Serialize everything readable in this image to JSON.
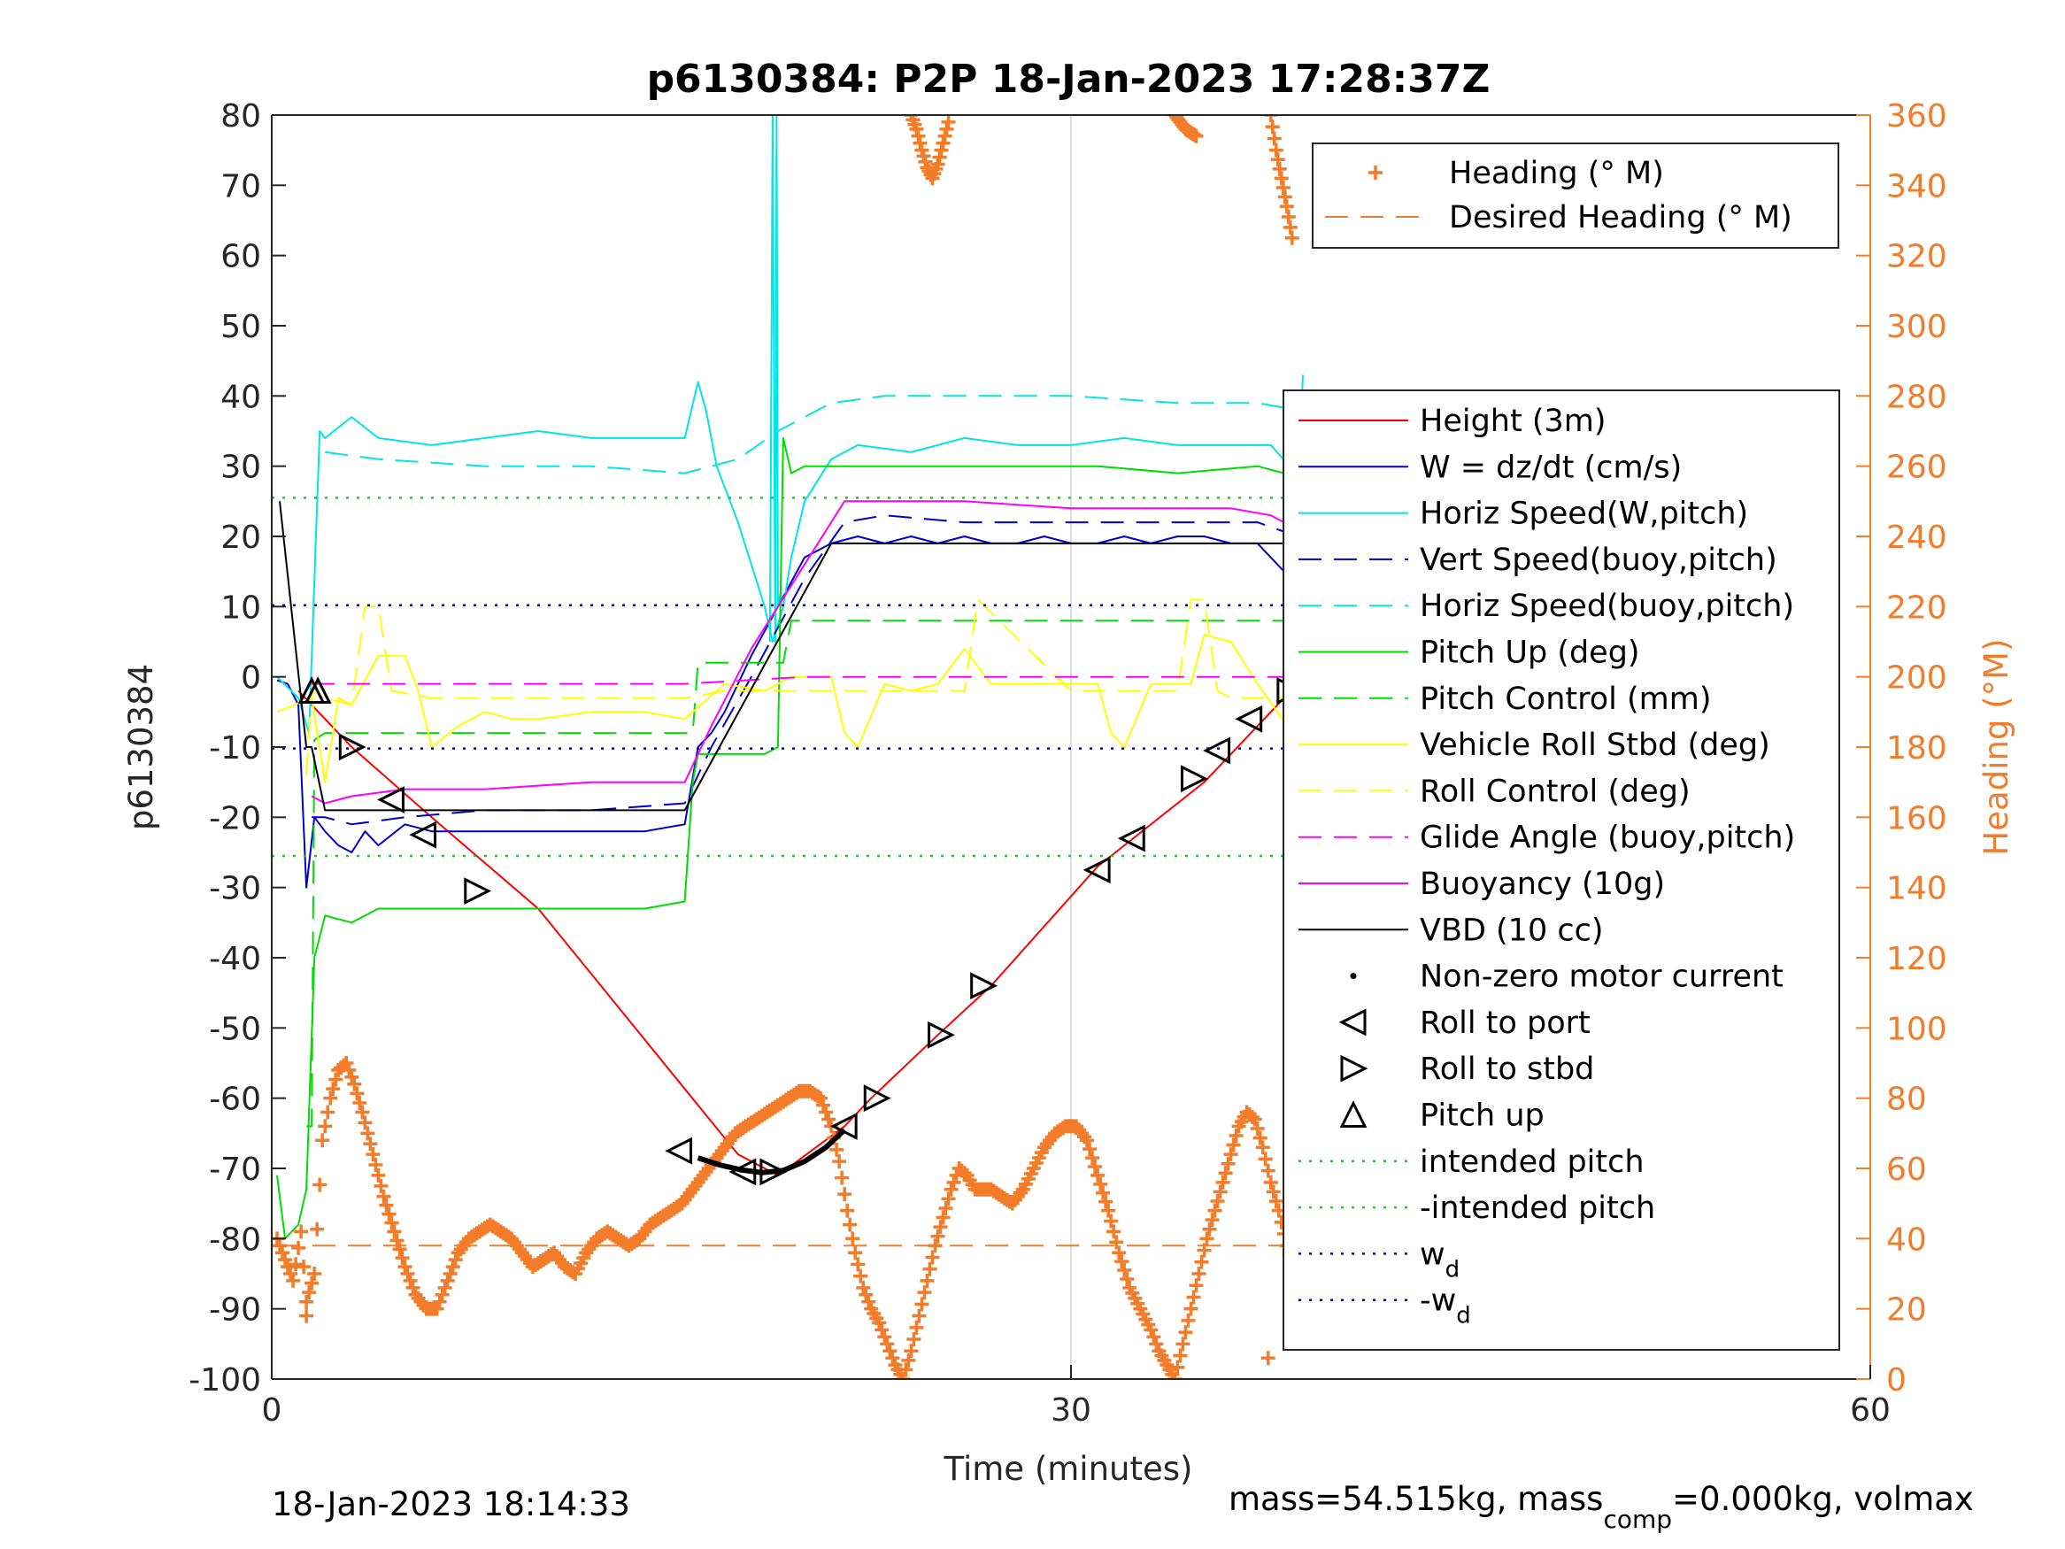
{
  "chart_data": {
    "type": "line",
    "title": "p6130384: P2P 18-Jan-2023 17:28:37Z",
    "xlabel": "Time (minutes)",
    "ylabel": "p6130384",
    "y2label": "Heading (°M)",
    "xlim": [
      0,
      60
    ],
    "ylim": [
      -100,
      80
    ],
    "y2lim": [
      0,
      360
    ],
    "xticks": [
      0,
      30,
      60
    ],
    "yticks": [
      80,
      70,
      60,
      50,
      40,
      30,
      20,
      10,
      0,
      -10,
      -20,
      -30,
      -40,
      -50,
      -60,
      -70,
      -80,
      -90,
      -100
    ],
    "y2ticks": [
      360,
      340,
      320,
      300,
      280,
      260,
      240,
      220,
      200,
      180,
      160,
      140,
      120,
      100,
      80,
      60,
      40,
      20,
      0
    ],
    "grid": "x-only",
    "footer_left": "18-Jan-2023 18:14:33",
    "footer_right": {
      "a": "mass=54.515kg, mass",
      "sub": "comp",
      "b": "=0.000kg, volmax"
    },
    "legend_heading": [
      {
        "name": "Heading (° M)",
        "color": "#f27c2a",
        "style": "plus"
      },
      {
        "name": "Desired Heading (° M)",
        "color": "#f27c2a",
        "style": "dashed"
      }
    ],
    "legend_main": [
      {
        "name": "Height (3m)",
        "color": "#ff0000",
        "style": "solid"
      },
      {
        "name": "W = dz/dt (cm/s)",
        "color": "#0000cc",
        "style": "solid"
      },
      {
        "name": "Horiz Speed(W,pitch)",
        "color": "#00e5e5",
        "style": "solid"
      },
      {
        "name": "Vert Speed(buoy,pitch)",
        "color": "#0000cc",
        "style": "dashed"
      },
      {
        "name": "Horiz Speed(buoy,pitch)",
        "color": "#00e5e5",
        "style": "dashed"
      },
      {
        "name": "Pitch Up (deg)",
        "color": "#00dd00",
        "style": "solid"
      },
      {
        "name": "Pitch Control (mm)",
        "color": "#00dd00",
        "style": "dashed"
      },
      {
        "name": "Vehicle Roll Stbd (deg)",
        "color": "#ffff00",
        "style": "solid"
      },
      {
        "name": "Roll Control (deg)",
        "color": "#ffff00",
        "style": "dashed"
      },
      {
        "name": "Glide Angle (buoy,pitch)",
        "color": "#ff00ff",
        "style": "dashed"
      },
      {
        "name": "Buoyancy (10g)",
        "color": "#ff00ff",
        "style": "solid"
      },
      {
        "name": "VBD (10 cc)",
        "color": "#000000",
        "style": "solid"
      },
      {
        "name": "Non-zero motor current",
        "color": "#000000",
        "style": "dot"
      },
      {
        "name": "Roll to port",
        "color": "#000000",
        "style": "tri-left"
      },
      {
        "name": "Roll to stbd",
        "color": "#000000",
        "style": "tri-right"
      },
      {
        "name": "Pitch up",
        "color": "#000000",
        "style": "tri-up"
      },
      {
        "name": "intended pitch",
        "color": "#00dd00",
        "style": "dotted"
      },
      {
        "name": "-intended pitch",
        "color": "#00dd00",
        "style": "dotted"
      },
      {
        "name": "w",
        "sub": "d",
        "color": "#0000cc",
        "style": "dotted"
      },
      {
        "name": "-w",
        "sub": "d",
        "color": "#0000cc",
        "style": "dotted"
      }
    ],
    "series": [
      {
        "name": "Height (3m)",
        "axis": "left",
        "color": "#ff0000",
        "style": "solid",
        "x": [
          1.0,
          3.0,
          6.0,
          10.0,
          13.0,
          16.0,
          17.5,
          19.0,
          21.5,
          22.5,
          25.0,
          27.0,
          31.0,
          35.0,
          38.5
        ],
        "y": [
          -2,
          -10,
          -20,
          -33,
          -47,
          -61,
          -68,
          -71,
          -64,
          -60,
          -51,
          -44,
          -27,
          -15,
          -1
        ]
      },
      {
        "name": "W = dz/dt (cm/s)",
        "axis": "left",
        "color": "#0000cc",
        "style": "solid",
        "x": [
          0.2,
          0.6,
          1.0,
          1.3,
          1.6,
          2.0,
          2.5,
          3.0,
          3.5,
          4.0,
          5.0,
          6.0,
          8.0,
          10.0,
          12.0,
          14.0,
          15.5,
          16.0,
          16.5,
          17.0,
          18.0,
          19.0,
          20.0,
          21.0,
          22.0,
          23.0,
          24.0,
          25.0,
          26.0,
          27.0,
          28.0,
          29.0,
          30.0,
          31.0,
          32.0,
          33.0,
          34.0,
          35.0,
          36.0,
          37.0,
          38.0,
          38.5
        ],
        "y": [
          -0.5,
          -1,
          -4,
          -30,
          -20,
          -22,
          -24,
          -25,
          -22,
          -24,
          -21,
          -22,
          -22,
          -22,
          -22,
          -22,
          -21,
          -10,
          -8,
          -5,
          3,
          10,
          17,
          19,
          20,
          19,
          20,
          19,
          20,
          19,
          19,
          20,
          19,
          19,
          20,
          19,
          20,
          20,
          19,
          19,
          15,
          9
        ]
      },
      {
        "name": "Horiz Speed(W,pitch)",
        "axis": "left",
        "color": "#00e5e5",
        "style": "solid",
        "x": [
          0.2,
          1.0,
          1.4,
          1.8,
          2.0,
          3.0,
          4.0,
          6.0,
          8.0,
          10.0,
          12.0,
          14.0,
          15.5,
          16.0,
          16.3,
          16.7,
          17.5,
          18.5,
          18.8,
          19.2,
          19.5,
          20.0,
          21.0,
          22.0,
          24.0,
          26.0,
          28.0,
          30.0,
          32.0,
          34.0,
          36.0,
          37.5,
          38.2,
          38.5,
          38.7
        ],
        "y": [
          0,
          -3,
          -8,
          35,
          34,
          37,
          34,
          33,
          34,
          35,
          34,
          34,
          34,
          42,
          38,
          30,
          22,
          10,
          5,
          10,
          17,
          25,
          31,
          33,
          32,
          34,
          33,
          33,
          34,
          33,
          33,
          33,
          30,
          20,
          43
        ]
      },
      {
        "name": "Horiz Speed spike",
        "axis": "left",
        "color": "#00e5e5",
        "style": "solid",
        "x": [
          18.7,
          18.8,
          18.9,
          18.95,
          19.0,
          19.1
        ],
        "y": [
          5,
          80,
          5,
          80,
          10,
          12
        ]
      },
      {
        "name": "Vert Speed(buoy,pitch)",
        "axis": "left",
        "color": "#0000cc",
        "style": "dashed",
        "x": [
          1.5,
          2.0,
          3.0,
          5.0,
          8.0,
          12.0,
          15.5,
          16.5,
          18.0,
          20.0,
          21.5,
          23.0,
          26.0,
          30.0,
          34.0,
          37.0,
          38.5
        ],
        "y": [
          -20,
          -20,
          -21,
          -20,
          -19,
          -19,
          -18,
          -10,
          0,
          14,
          22,
          23,
          22,
          22,
          22,
          22,
          20
        ]
      },
      {
        "name": "Horiz Speed(buoy,pitch)",
        "axis": "left",
        "color": "#00e5e5",
        "style": "dashed",
        "x": [
          2.0,
          4.0,
          8.0,
          12.0,
          15.5,
          17.5,
          19.0,
          21.0,
          23.0,
          26.0,
          30.0,
          34.0,
          37.0,
          38.5
        ],
        "y": [
          32,
          31,
          30,
          30,
          29,
          31,
          35,
          39,
          40,
          40,
          40,
          39,
          39,
          38
        ]
      },
      {
        "name": "Pitch Up (deg)",
        "axis": "left",
        "color": "#00dd00",
        "style": "solid",
        "x": [
          0.2,
          0.5,
          1.0,
          1.3,
          1.6,
          2.0,
          3.0,
          4.0,
          6.0,
          8.0,
          10.0,
          12.0,
          14.0,
          15.5,
          15.8,
          16.0,
          17.0,
          18.5,
          19.0,
          19.2,
          19.5,
          20.0,
          22.0,
          25.0,
          28.0,
          31.0,
          34.0,
          37.0,
          38.0,
          38.5
        ],
        "y": [
          -71,
          -80,
          -78,
          -73,
          -40,
          -34,
          -35,
          -33,
          -33,
          -33,
          -33,
          -33,
          -33,
          -32,
          -15,
          -11,
          -11,
          -11,
          -10,
          34,
          29,
          30,
          30,
          30,
          30,
          30,
          29,
          30,
          29,
          25
        ]
      },
      {
        "name": "Pitch Control (mm)",
        "axis": "left",
        "color": "#00dd00",
        "style": "dashed",
        "x": [
          1.3,
          1.5,
          1.6,
          2.0,
          5.0,
          10.0,
          15.8,
          16.0,
          19.2,
          19.5,
          25.0,
          30.0,
          35.0,
          38.5
        ],
        "y": [
          -64,
          -64,
          -9,
          -8,
          -8,
          -8,
          -8,
          2,
          2,
          8,
          8,
          8,
          8,
          8
        ]
      },
      {
        "name": "Vehicle Roll Stbd (deg)",
        "axis": "left",
        "color": "#ffff00",
        "style": "solid",
        "x": [
          0.2,
          1.5,
          2.0,
          2.5,
          3.0,
          4.0,
          5.0,
          5.5,
          6.0,
          7.0,
          8.0,
          9.0,
          10.0,
          12.0,
          14.0,
          15.5,
          17.0,
          18.5,
          19.5,
          21.0,
          21.5,
          22.0,
          23.0,
          24.0,
          25.0,
          26.0,
          27.0,
          29.0,
          31.0,
          31.5,
          32.0,
          33.0,
          34.5,
          35.0,
          36.0,
          37.0,
          38.5
        ],
        "y": [
          -5,
          -3,
          -15,
          -3,
          -4,
          3,
          3,
          -2,
          -10,
          -7,
          -5,
          -6,
          -6,
          -5,
          -5,
          -6,
          -1,
          -2,
          0,
          0,
          -8,
          -10,
          -1,
          -2,
          -1,
          4,
          -1,
          -1,
          -1,
          -8,
          -10,
          -1,
          -1,
          6,
          5,
          -1,
          -9
        ]
      },
      {
        "name": "Roll Control (deg)",
        "axis": "left",
        "color": "#ffff00",
        "style": "dashed",
        "x": [
          1.3,
          1.5,
          2.0,
          3.0,
          3.5,
          4.0,
          4.5,
          6.0,
          10.0,
          15.5,
          17.0,
          20.0,
          22.0,
          24.0,
          26.0,
          26.5,
          30.0,
          34.0,
          34.5,
          35.0,
          35.5,
          36.0,
          38.5
        ],
        "y": [
          -14,
          -2,
          -3,
          -4,
          10,
          10,
          -2,
          -3,
          -3,
          -3,
          -2,
          -2,
          -2,
          -2,
          -2,
          11,
          -2,
          -2,
          11,
          11,
          -2,
          -3,
          -3
        ]
      },
      {
        "name": "Glide Angle (buoy,pitch)",
        "axis": "left",
        "color": "#ff00ff",
        "style": "dashed",
        "x": [
          1.5,
          2.0,
          8.0,
          15.5,
          20.0,
          25.0,
          30.0,
          35.0,
          38.5
        ],
        "y": [
          -1,
          -1,
          -1,
          -1,
          0,
          0,
          0,
          0,
          0
        ]
      },
      {
        "name": "Buoyancy (10g)",
        "axis": "left",
        "color": "#ff00ff",
        "style": "solid",
        "x": [
          1.5,
          2.0,
          3.0,
          5.0,
          8.0,
          12.0,
          15.5,
          16.5,
          18.0,
          20.0,
          21.5,
          23.0,
          26.0,
          30.0,
          34.0,
          36.0,
          37.5,
          38.5
        ],
        "y": [
          -17,
          -18,
          -17,
          -16,
          -16,
          -15,
          -15,
          -7,
          4,
          16,
          25,
          25,
          25,
          24,
          24,
          24,
          23,
          21
        ]
      },
      {
        "name": "VBD (10 cc)",
        "axis": "left",
        "color": "#000000",
        "style": "solid",
        "x": [
          0.3,
          1.3,
          1.5,
          2.0,
          8.0,
          15.5,
          21.0,
          21.5,
          38.5
        ],
        "y": [
          25,
          -10,
          -10,
          -19,
          -19,
          -19,
          19,
          19,
          19
        ]
      },
      {
        "name": "Desired Heading (° M)",
        "axis": "right",
        "color": "#f27c2a",
        "style": "dashed",
        "x": [
          0.2,
          38.5
        ],
        "y": [
          38,
          38
        ]
      },
      {
        "name": "intended pitch",
        "axis": "left",
        "color": "#00dd00",
        "style": "dotted",
        "x": [
          0,
          38.5
        ],
        "y": [
          25.5,
          25.5
        ]
      },
      {
        "name": "-intended pitch",
        "axis": "left",
        "color": "#00dd00",
        "style": "dotted",
        "x": [
          0,
          38.5
        ],
        "y": [
          -25.5,
          -25.5
        ]
      },
      {
        "name": "w_d",
        "axis": "left",
        "color": "#0000cc",
        "style": "dotted",
        "x": [
          0,
          38.5
        ],
        "y": [
          10.2,
          10.2
        ]
      },
      {
        "name": "-w_d",
        "axis": "left",
        "color": "#0000cc",
        "style": "dotted",
        "x": [
          0,
          38.5
        ],
        "y": [
          -10.2,
          -10.2
        ]
      }
    ],
    "heading": {
      "name": "Heading (° M)",
      "axis": "right",
      "color": "#f27c2a",
      "x": [
        0.2,
        0.5,
        0.8,
        1.1,
        1.3,
        1.6,
        1.9,
        2.2,
        2.5,
        2.8,
        3.1,
        3.4,
        3.8,
        4.2,
        4.6,
        5.0,
        5.4,
        5.8,
        6.2,
        6.6,
        7.0,
        7.4,
        7.8,
        8.2,
        8.6,
        9.0,
        9.4,
        9.8,
        10.2,
        10.6,
        11.0,
        11.4,
        11.8,
        12.2,
        12.6,
        13.0,
        13.4,
        13.8,
        14.2,
        14.6,
        15.0,
        15.4,
        15.8,
        16.2,
        16.6,
        17.0,
        17.4,
        17.8,
        18.2,
        18.6,
        19.0,
        19.4,
        19.8,
        20.2,
        20.6,
        21.0,
        21.3,
        21.6,
        21.9,
        22.2,
        22.5,
        22.8,
        23.1,
        23.4,
        23.7,
        24.0,
        24.3,
        24.6,
        24.9,
        25.2,
        25.5,
        25.8,
        26.1,
        26.4,
        26.7,
        27.0,
        27.4,
        27.8,
        28.2,
        28.6,
        29.0,
        29.4,
        29.8,
        30.2,
        30.6,
        31.0,
        31.4,
        31.8,
        32.2,
        32.6,
        33.0,
        33.3,
        33.6,
        33.9,
        34.2,
        34.5,
        34.8,
        35.1,
        35.4,
        35.7,
        36.0,
        36.3,
        36.6,
        36.9,
        37.2,
        37.5,
        37.8,
        38.1,
        38.4
      ],
      "y": [
        40,
        34,
        28,
        42,
        22,
        30,
        68,
        80,
        88,
        90,
        84,
        76,
        64,
        52,
        42,
        32,
        24,
        20,
        20,
        28,
        36,
        40,
        42,
        44,
        42,
        40,
        36,
        32,
        34,
        36,
        32,
        30,
        36,
        40,
        42,
        40,
        38,
        40,
        44,
        46,
        48,
        50,
        54,
        58,
        62,
        66,
        70,
        72,
        74,
        76,
        78,
        80,
        82,
        82,
        80,
        72,
        62,
        48,
        36,
        26,
        20,
        16,
        10,
        4,
        0,
        8,
        18,
        28,
        38,
        46,
        54,
        60,
        58,
        54,
        54,
        54,
        52,
        50,
        54,
        60,
        66,
        70,
        72,
        72,
        68,
        58,
        48,
        36,
        26,
        20,
        14,
        8,
        4,
        0,
        10,
        20,
        30,
        40,
        48,
        56,
        64,
        72,
        76,
        74,
        66,
        56,
        48,
        38,
        30
      ]
    },
    "heading_top": {
      "x": [
        24.0,
        24.2,
        24.4,
        24.6,
        24.8,
        25.0,
        25.2,
        25.4,
        33.9,
        34.1,
        34.3,
        34.5,
        34.7,
        37.5,
        37.7,
        37.9,
        38.1,
        38.3
      ],
      "y": [
        360,
        356,
        350,
        345,
        342,
        346,
        352,
        358,
        360,
        358,
        356,
        355,
        354,
        360,
        350,
        342,
        334,
        325
      ]
    },
    "heading_outliers": {
      "x": [
        1.3,
        37.4
      ],
      "y": [
        18,
        6
      ]
    },
    "markers": {
      "roll_to_port": {
        "x": [
          4.5,
          5.7,
          15.3,
          17.7,
          21.5,
          31.0,
          32.3,
          35.5,
          36.7
        ],
        "y": [
          -17.5,
          -22.5,
          -67.5,
          -70.5,
          -64,
          -27.5,
          -23,
          -10.5,
          -6
        ]
      },
      "roll_to_stbd": {
        "x": [
          3.0,
          7.7,
          18.8,
          22.7,
          25.1,
          26.7,
          34.6,
          38.2
        ],
        "y": [
          -10,
          -30.5,
          -70.5,
          -60,
          -51,
          -44,
          -14.5,
          -2
        ]
      },
      "pitch_up": {
        "x": [
          1.5
        ],
        "y": [
          -2
        ]
      }
    },
    "motor_current": {
      "x": [
        16.0,
        16.8,
        17.6,
        18.4,
        19.2,
        20.0,
        20.8,
        21.5
      ],
      "y": [
        -68.5,
        -69.5,
        -70.2,
        -70.6,
        -70.3,
        -69,
        -67,
        -64.5
      ]
    }
  }
}
